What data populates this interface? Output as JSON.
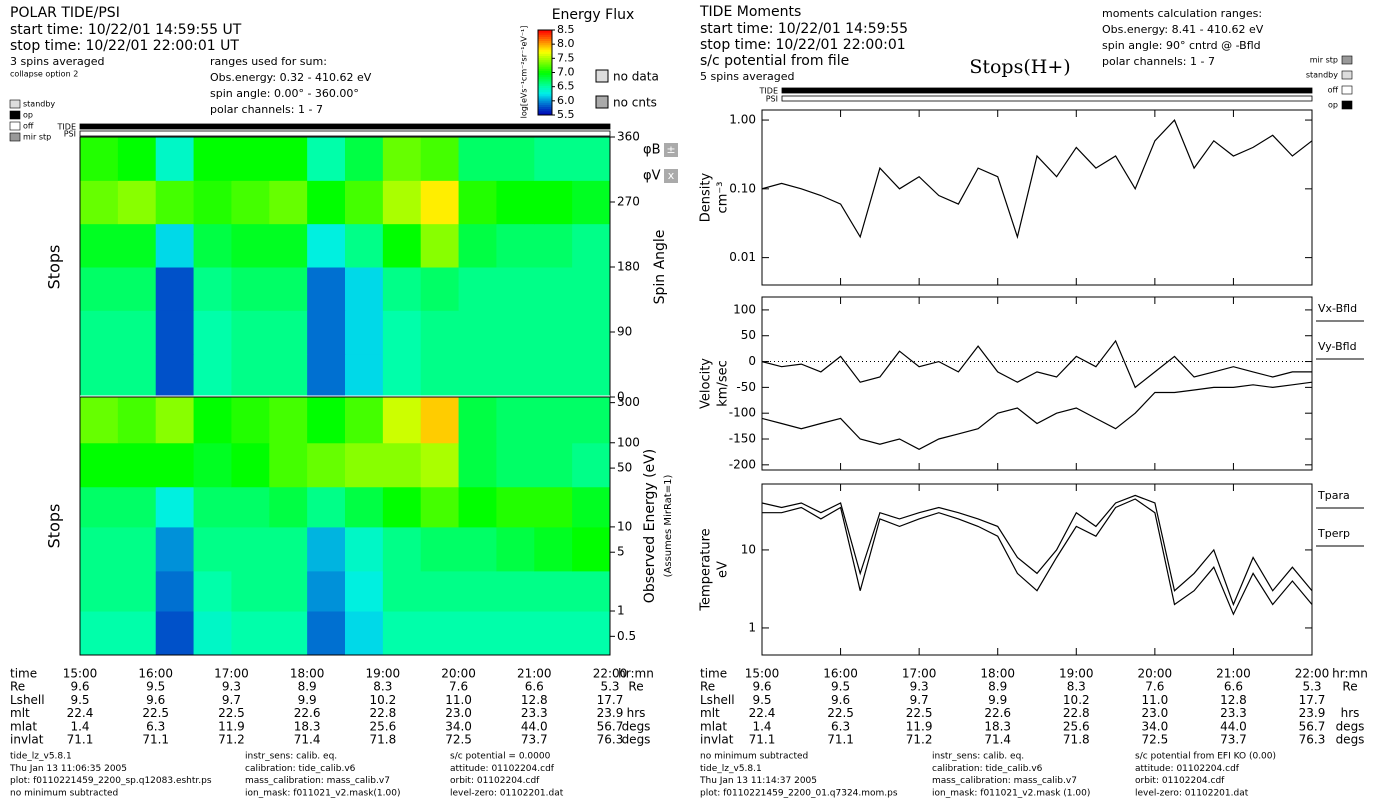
{
  "left_header": {
    "lines": [
      "POLAR TIDE/PSI",
      "start time: 10/22/01 14:59:55 UT",
      "stop time: 10/22/01 22:00:01 UT",
      "3 spins averaged",
      "collapse option 2"
    ],
    "ranges": [
      "ranges used for sum:",
      "Obs.energy: 0.32 - 410.62 eV",
      "spin angle: 0.00° - 360.00°",
      "polar channels: 1 - 7"
    ]
  },
  "left_legend": {
    "colorbar_title": "Energy Flux",
    "colorbar_label": "log[eVs⁻¹cm⁻²sr⁻¹eV⁻¹]",
    "no_data": "no data",
    "no_cnts": "no cnts",
    "status": [
      "standby",
      "op",
      "off",
      "mir stp"
    ],
    "instruments": [
      "TIDE",
      "PSI"
    ],
    "phi_b": "φB",
    "phi_v": "φV",
    "phi_b_sym": "±",
    "phi_v_sym": "x"
  },
  "right_header": {
    "lines": [
      "TIDE Moments",
      "start time: 10/22/01 14:59:55",
      "stop time: 10/22/01 22:00:01",
      "s/c potential from file",
      "5 spins averaged"
    ],
    "ranges": [
      "moments calculation ranges:",
      "Obs.energy: 8.41 - 410.62 eV",
      "spin angle: 90° cntrd @ -Bfld",
      "polar channels: 1 - 7"
    ],
    "title": "Stops(H+)",
    "status": [
      "mir stp",
      "standby",
      "off",
      "op"
    ],
    "instruments": [
      "TIDE",
      "PSI"
    ]
  },
  "ephemeris": {
    "labels": [
      "time",
      "Re",
      "Lshell",
      "mlt",
      "mlat",
      "invlat"
    ],
    "units": [
      "hr:mn",
      "Re",
      null,
      "hrs",
      "degs",
      "degs"
    ],
    "rows": [
      [
        "9.6",
        "9.5",
        "9.3",
        "8.9",
        "8.3",
        "7.6",
        "6.6",
        "5.3"
      ],
      [
        "9.5",
        "9.6",
        "9.7",
        "9.9",
        "10.2",
        "11.0",
        "12.8",
        "17.7"
      ],
      [
        "22.4",
        "22.5",
        "22.5",
        "22.6",
        "22.8",
        "23.0",
        "23.3",
        "23.9"
      ],
      [
        "1.4",
        "6.3",
        "11.9",
        "18.3",
        "25.6",
        "34.0",
        "44.0",
        "56.7"
      ],
      [
        "71.1",
        "71.1",
        "71.2",
        "71.4",
        "71.8",
        "72.5",
        "73.7",
        "76.3"
      ]
    ]
  },
  "left_footer": [
    [
      "tide_lz_v5.8.1",
      "Thu Jan 13 11:06:35 2005",
      "plot: f0110221459_2200_sp.q12083.eshtr.ps",
      "no minimum subtracted"
    ],
    [
      "instr_sens:  calib. eq.",
      "calibration:  tide_calib.v6",
      "mass_calibration:  mass_calib.v7",
      "ion_mask:  f011021_v2.mask(1.00)"
    ],
    [
      "s/c potential = 0.0000",
      "attitude:  01102204.cdf",
      "orbit:  01102204.cdf",
      "level-zero:  01102201.dat"
    ]
  ],
  "right_footer": [
    [
      "no minimum subtracted",
      "tide_lz_v5.8.1",
      "Thu Jan 13 11:14:37 2005",
      "plot: f0110221459_2200_01.q7324.mom.ps"
    ],
    [
      "instr_sens:  calib. eq.",
      "calibration:  tide_calib.v6",
      "mass_calibration:  mass_calib.v7",
      "ion_mask:  f011021_v2.mask (1.00)"
    ],
    [
      "s/c potential from EFI KO (0.00)",
      "attitude:  01102204.cdf",
      "orbit:  01102204.cdf",
      "level-zero:  01102201.dat"
    ]
  ],
  "chart_data": [
    {
      "type": "heatmap",
      "side_label": "Stops",
      "ylabel": "Spin Angle",
      "xbins": [
        15,
        15.5,
        16,
        16.5,
        17,
        17.5,
        18,
        18.5,
        19,
        19.5,
        20,
        20.5,
        21,
        21.5,
        22
      ],
      "ybins": [
        0,
        60,
        120,
        180,
        240,
        300,
        360
      ],
      "xlim": [
        15,
        22
      ],
      "ylim": [
        0,
        360
      ],
      "yticks": [
        0,
        90,
        180,
        270,
        360
      ],
      "xticks": [
        {
          "value": 15,
          "label": "15:00"
        },
        {
          "value": 16,
          "label": "16:00"
        },
        {
          "value": 17,
          "label": "17:00"
        },
        {
          "value": 18,
          "label": "18:00"
        },
        {
          "value": 19,
          "label": "19:00"
        },
        {
          "value": 20,
          "label": "20:00"
        },
        {
          "value": 21,
          "label": "21:00"
        },
        {
          "value": 22,
          "label": "22:00"
        }
      ],
      "zlim": [
        5.5,
        8.5
      ],
      "zticks": [
        5.5,
        {
          "value": 6,
          "label": "6.0"
        },
        6.5,
        {
          "value": 7,
          "label": "7.0"
        },
        7.5,
        {
          "value": 8,
          "label": "8.0"
        },
        8.5
      ],
      "values": [
        [
          6.6,
          6.6,
          5.8,
          6.5,
          6.6,
          6.6,
          5.9,
          6.2,
          6.5,
          6.6,
          6.6,
          6.6,
          6.6,
          6.6
        ],
        [
          6.6,
          6.6,
          5.8,
          6.5,
          6.6,
          6.6,
          5.9,
          6.2,
          6.5,
          6.6,
          6.6,
          6.6,
          6.6,
          6.6
        ],
        [
          6.7,
          6.7,
          5.8,
          6.6,
          6.7,
          6.7,
          5.9,
          6.2,
          6.6,
          6.7,
          6.6,
          6.6,
          6.6,
          6.6
        ],
        [
          6.9,
          6.9,
          6.2,
          6.8,
          6.9,
          6.9,
          6.3,
          6.6,
          7.0,
          7.4,
          6.8,
          6.7,
          6.7,
          6.6
        ],
        [
          7.3,
          7.4,
          7.2,
          7.1,
          7.2,
          7.3,
          7.0,
          7.2,
          7.5,
          7.8,
          7.1,
          7.0,
          7.0,
          6.9
        ],
        [
          7.1,
          7.0,
          6.4,
          7.0,
          7.0,
          7.0,
          6.5,
          6.8,
          7.3,
          7.2,
          6.7,
          6.7,
          6.6,
          6.6
        ]
      ]
    },
    {
      "type": "heatmap",
      "side_label": "Stops",
      "ylabel": "Observed Energy (eV)",
      "ylabel2": "(Assumes MirRat=1)",
      "log_y": true,
      "xbins": [
        15,
        15.5,
        16,
        16.5,
        17,
        17.5,
        18,
        18.5,
        19,
        19.5,
        20,
        20.5,
        21,
        21.5,
        22
      ],
      "ybins": [
        0.3,
        1,
        3,
        10,
        30,
        100,
        350
      ],
      "xlim": [
        15,
        22
      ],
      "ylim": [
        0.3,
        350
      ],
      "yticks": [
        0.5,
        1,
        5,
        10,
        50,
        100,
        300
      ],
      "zlim": [
        5.5,
        8.5
      ],
      "values": [
        [
          6.5,
          6.5,
          5.8,
          6.4,
          6.5,
          6.5,
          5.9,
          6.2,
          6.5,
          6.5,
          6.5,
          6.5,
          6.5,
          6.5
        ],
        [
          6.6,
          6.6,
          5.9,
          6.5,
          6.6,
          6.6,
          6.0,
          6.3,
          6.6,
          6.6,
          6.6,
          6.6,
          6.6,
          6.6
        ],
        [
          6.6,
          6.6,
          6.0,
          6.6,
          6.6,
          6.6,
          6.1,
          6.4,
          6.6,
          6.7,
          6.7,
          6.8,
          6.9,
          7.0
        ],
        [
          6.7,
          6.7,
          6.3,
          6.7,
          6.7,
          6.8,
          6.6,
          6.8,
          7.0,
          7.2,
          7.0,
          7.1,
          7.1,
          6.9
        ],
        [
          7.0,
          7.0,
          7.0,
          6.9,
          7.0,
          7.2,
          7.3,
          7.4,
          7.4,
          7.5,
          6.8,
          6.7,
          6.7,
          6.6
        ],
        [
          7.3,
          7.2,
          7.4,
          7.0,
          7.1,
          7.2,
          7.0,
          7.2,
          7.6,
          7.9,
          6.8,
          6.7,
          6.7,
          6.7
        ]
      ]
    },
    {
      "type": "line",
      "ylabel": "Density",
      "yunit": "cm⁻³",
      "log_y": true,
      "color": "#000000",
      "x": [
        15,
        15.25,
        15.5,
        15.75,
        16,
        16.25,
        16.5,
        16.75,
        17,
        17.25,
        17.5,
        17.75,
        18,
        18.25,
        18.5,
        18.75,
        19,
        19.25,
        19.5,
        19.75,
        20,
        20.25,
        20.5,
        20.75,
        21,
        21.25,
        21.5,
        21.75,
        22
      ],
      "xlim": [
        15,
        22
      ],
      "xticks": [
        {
          "value": 15,
          "label": "15:00"
        },
        {
          "value": 16,
          "label": "16:00"
        },
        {
          "value": 17,
          "label": "17:00"
        },
        {
          "value": 18,
          "label": "18:00"
        },
        {
          "value": 19,
          "label": "19:00"
        },
        {
          "value": 20,
          "label": "20:00"
        },
        {
          "value": 21,
          "label": "21:00"
        },
        {
          "value": 22,
          "label": "22:00"
        }
      ],
      "ylim": [
        0.004,
        1.4
      ],
      "yticks": [
        0.01,
        {
          "value": 0.1,
          "label": "0.10"
        },
        {
          "value": 1,
          "label": "1.00"
        }
      ],
      "values": [
        0.1,
        0.12,
        0.1,
        0.08,
        0.06,
        0.02,
        0.2,
        0.1,
        0.15,
        0.08,
        0.06,
        0.2,
        0.15,
        0.02,
        0.3,
        0.15,
        0.4,
        0.2,
        0.3,
        0.1,
        0.5,
        1.0,
        0.2,
        0.5,
        0.3,
        0.4,
        0.6,
        0.3,
        0.5
      ]
    },
    {
      "type": "line",
      "ylabel": "Velocity",
      "yunit": "km/sec",
      "zero_line": true,
      "x": [
        15,
        15.25,
        15.5,
        15.75,
        16,
        16.25,
        16.5,
        16.75,
        17,
        17.25,
        17.5,
        17.75,
        18,
        18.25,
        18.5,
        18.75,
        19,
        19.25,
        19.5,
        19.75,
        20,
        20.25,
        20.5,
        20.75,
        21,
        21.25,
        21.5,
        21.75,
        22
      ],
      "xlim": [
        15,
        22
      ],
      "xticks": [
        {
          "value": 15,
          "label": "15:00"
        },
        {
          "value": 16,
          "label": "16:00"
        },
        {
          "value": 17,
          "label": "17:00"
        },
        {
          "value": 18,
          "label": "18:00"
        },
        {
          "value": 19,
          "label": "19:00"
        },
        {
          "value": 20,
          "label": "20:00"
        },
        {
          "value": 21,
          "label": "21:00"
        },
        {
          "value": 22,
          "label": "22:00"
        }
      ],
      "ylim": [
        -210,
        125
      ],
      "yticks": [
        -200,
        -150,
        -100,
        -50,
        0,
        50,
        100
      ],
      "series": [
        {
          "name": "Vx-Bfld",
          "color": "#000000",
          "values": [
            0,
            -10,
            -5,
            -20,
            10,
            -40,
            -30,
            20,
            -10,
            0,
            -20,
            30,
            -20,
            -40,
            -20,
            -30,
            10,
            -10,
            40,
            -50,
            -20,
            10,
            -30,
            -20,
            -10,
            -20,
            -30,
            -20,
            -20
          ]
        },
        {
          "name": "Vy-Bfld",
          "color": "#000000",
          "values": [
            -110,
            -120,
            -130,
            -120,
            -110,
            -150,
            -160,
            -150,
            -170,
            -150,
            -140,
            -130,
            -100,
            -90,
            -120,
            -100,
            -90,
            -110,
            -130,
            -100,
            -60,
            -60,
            -55,
            -50,
            -50,
            -45,
            -50,
            -45,
            -40
          ]
        }
      ]
    },
    {
      "type": "line",
      "ylabel": "Temperature",
      "yunit": "eV",
      "log_y": true,
      "x": [
        15,
        15.25,
        15.5,
        15.75,
        16,
        16.25,
        16.5,
        16.75,
        17,
        17.25,
        17.5,
        17.75,
        18,
        18.25,
        18.5,
        18.75,
        19,
        19.25,
        19.5,
        19.75,
        20,
        20.25,
        20.5,
        20.75,
        21,
        21.25,
        21.5,
        21.75,
        22
      ],
      "xlim": [
        15,
        22
      ],
      "xticks": [
        {
          "value": 15,
          "label": "15:00"
        },
        {
          "value": 16,
          "label": "16:00"
        },
        {
          "value": 17,
          "label": "17:00"
        },
        {
          "value": 18,
          "label": "18:00"
        },
        {
          "value": 19,
          "label": "19:00"
        },
        {
          "value": 20,
          "label": "20:00"
        },
        {
          "value": 21,
          "label": "21:00"
        },
        {
          "value": 22,
          "label": "22:00"
        }
      ],
      "ylim": [
        0.45,
        70
      ],
      "yticks": [
        1,
        10
      ],
      "series": [
        {
          "name": "Tpara",
          "color": "#000000",
          "values": [
            40,
            35,
            40,
            30,
            40,
            5,
            30,
            25,
            30,
            35,
            30,
            25,
            20,
            8,
            5,
            10,
            30,
            20,
            40,
            50,
            40,
            3,
            5,
            10,
            2,
            8,
            3,
            6,
            3
          ]
        },
        {
          "name": "Tperp",
          "color": "#000000",
          "values": [
            30,
            30,
            35,
            25,
            35,
            3,
            25,
            20,
            25,
            30,
            25,
            20,
            15,
            5,
            3,
            8,
            20,
            15,
            35,
            45,
            30,
            2,
            3,
            6,
            1.5,
            5,
            2,
            4,
            2
          ]
        }
      ]
    }
  ]
}
